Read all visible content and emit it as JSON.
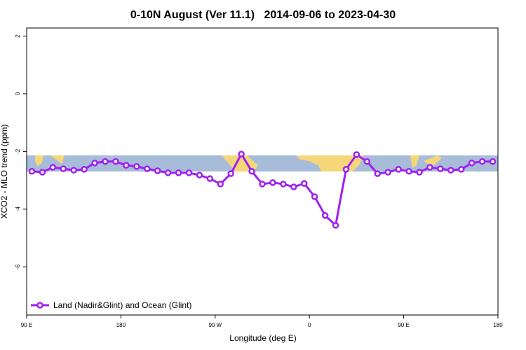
{
  "chart_data": {
    "type": "line",
    "title": "0-10N August (Ver 11.1)   2014-09-06 to 2023-04-30",
    "x_label": "Longitude (deg E)",
    "y_label": "XCO2 - MLO trend (ppm)",
    "xlim": [
      90,
      540
    ],
    "ylim": [
      -7.67,
      2.28
    ],
    "xticks": [
      {
        "value": 90,
        "label": "90 E"
      },
      180,
      {
        "value": 270,
        "label": "90 W"
      },
      {
        "value": 360,
        "label": "0"
      },
      {
        "value": 450,
        "label": "90 E"
      },
      {
        "value": 540,
        "label": "180"
      }
    ],
    "yticks": [
      2,
      0,
      -2,
      -4,
      -6
    ],
    "x": [
      95,
      105,
      115,
      125,
      135,
      145,
      155,
      165,
      175,
      185,
      195,
      205,
      215,
      225,
      235,
      245,
      255,
      265,
      275,
      285,
      295,
      305,
      315,
      325,
      335,
      345,
      355,
      365,
      375,
      385,
      395,
      405,
      415,
      425,
      435,
      445,
      455,
      465,
      475,
      485,
      495,
      505,
      515,
      525,
      535
    ],
    "series": [
      {
        "name": "Land (Nadir&Glint) and Ocean (Glint)",
        "color": "#a020f0",
        "values": [
          -2.69,
          -2.72,
          -2.55,
          -2.6,
          -2.65,
          -2.62,
          -2.4,
          -2.35,
          -2.35,
          -2.48,
          -2.52,
          -2.6,
          -2.67,
          -2.74,
          -2.74,
          -2.74,
          -2.82,
          -2.94,
          -3.13,
          -2.77,
          -2.09,
          -2.69,
          -3.13,
          -3.08,
          -3.13,
          -3.23,
          -3.11,
          -3.57,
          -4.22,
          -4.56,
          -2.62,
          -2.11,
          -2.35,
          -2.77,
          -2.72,
          -2.62,
          -2.69,
          -2.72,
          -2.55,
          -2.6,
          -2.65,
          -2.62,
          -2.4,
          -2.35,
          -2.35
        ]
      }
    ],
    "legend": "bottom-left"
  }
}
